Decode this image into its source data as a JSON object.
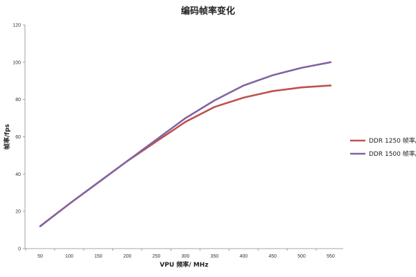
{
  "chart_data": {
    "type": "line",
    "title": "编码帧率变化",
    "xlabel": "VPU 频率/ MHz",
    "ylabel": "帧率/fps",
    "x": [
      50,
      100,
      150,
      200,
      250,
      300,
      350,
      400,
      450,
      500,
      550
    ],
    "xlim": [
      50,
      550
    ],
    "ylim": [
      0,
      120
    ],
    "y_ticks": [
      0,
      20,
      40,
      60,
      80,
      100,
      120
    ],
    "grid": false,
    "legend_position": "right",
    "series": [
      {
        "name": "DDR 1250 帧率/fps",
        "color": "#c0504d",
        "values": [
          12,
          24,
          35.5,
          47,
          57.5,
          68,
          76,
          81,
          84.5,
          86.5,
          87.5
        ]
      },
      {
        "name": "DDR 1500 帧率/fps",
        "color": "#8064a2",
        "values": [
          12,
          24,
          35.5,
          47,
          58.5,
          70,
          79.5,
          87.5,
          93,
          97,
          100
        ]
      }
    ]
  }
}
